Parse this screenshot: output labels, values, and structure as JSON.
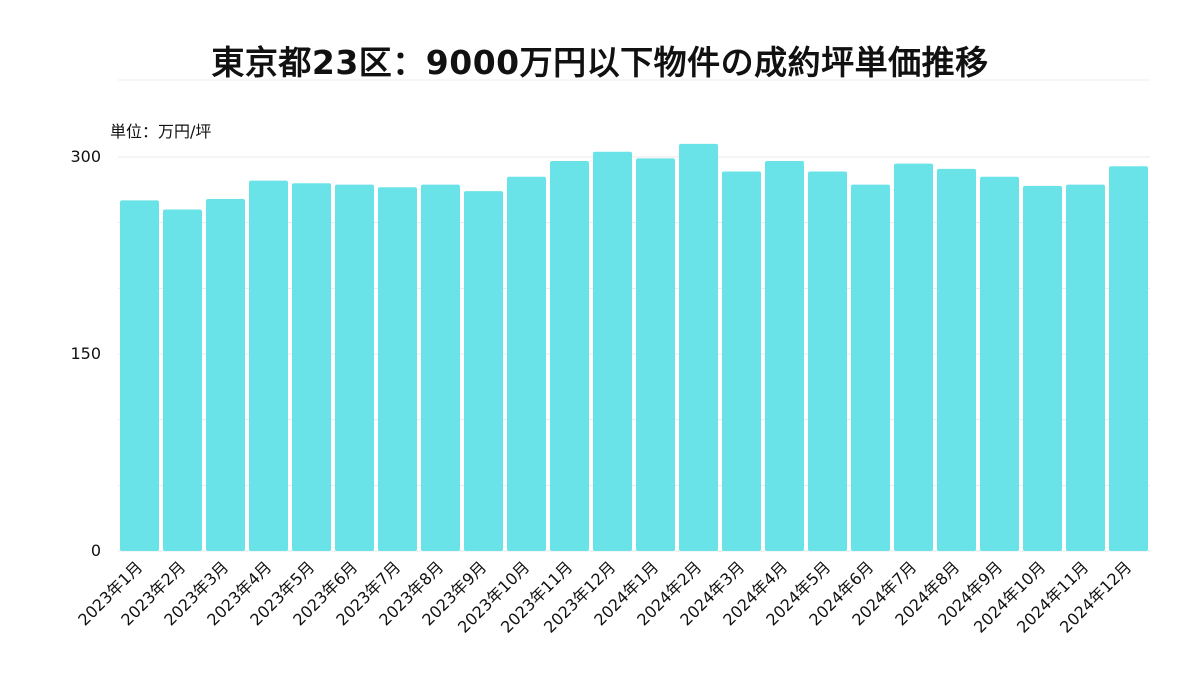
{
  "chart_data": {
    "type": "bar",
    "title": "東京都23区：9000万円以下物件の成約坪単価推移",
    "unit_label": "単位：万円/坪",
    "categories": [
      "2023年1月",
      "2023年2月",
      "2023年3月",
      "2023年4月",
      "2023年5月",
      "2023年6月",
      "2023年7月",
      "2023年8月",
      "2023年9月",
      "2023年10月",
      "2023年11月",
      "2023年12月",
      "2024年1月",
      "2024年2月",
      "2024年3月",
      "2024年4月",
      "2024年5月",
      "2024年6月",
      "2024年7月",
      "2024年8月",
      "2024年9月",
      "2024年10月",
      "2024年11月",
      "2024年12月"
    ],
    "values": [
      267,
      260,
      268,
      282,
      280,
      279,
      277,
      279,
      274,
      285,
      297,
      304,
      299,
      310,
      289,
      297,
      289,
      279,
      295,
      291,
      285,
      278,
      279,
      293
    ],
    "ylim": [
      0,
      300
    ],
    "yticks": [
      "0",
      "150",
      "300"
    ],
    "grid": true,
    "bar_color": "#69e3e7",
    "grid_color": "#e8e8e8"
  }
}
